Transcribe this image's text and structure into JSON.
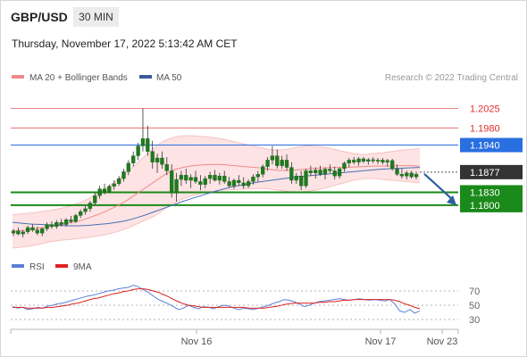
{
  "header": {
    "symbol": "GBP/USD",
    "timeframe": "30 MIN",
    "datetime": "Thursday, November 17, 2022 5:13:42 AM CET"
  },
  "legend": {
    "ma20_label": "MA 20 + Bollinger Bands",
    "ma50_label": "MA 50",
    "credit": "Research © 2022 Trading Central"
  },
  "rsi_legend": {
    "rsi_label": "RSI",
    "ma_label": "9MA"
  },
  "colors": {
    "up": "#1e7a1e",
    "down": "#1e7a1e",
    "ma20": "#f08a8a",
    "ma50": "#4a6fb5",
    "band_fill": "#fde3e3",
    "resistance": "#e03030",
    "pivot": "#2a6fe0",
    "support": "#1a8a1a",
    "current": "#333333",
    "arrow": "#2a5fa0",
    "rsi": "#5b7fd6",
    "rsi_ma": "#e02020"
  },
  "chart_data": [
    {
      "type": "candlestick",
      "title": "GBP/USD",
      "x_ticks": [
        "Nov 16",
        "Nov 17",
        "Nov 23"
      ],
      "y_range": [
        1.17,
        1.207
      ],
      "levels": [
        {
          "value": "1.2025",
          "kind": "resistance"
        },
        {
          "value": "1.1980",
          "kind": "resistance"
        },
        {
          "value": "1.1940",
          "kind": "pivot"
        },
        {
          "value": "1.1877",
          "kind": "current"
        },
        {
          "value": "1.1830",
          "kind": "support"
        },
        {
          "value": "1.1800",
          "kind": "support"
        }
      ],
      "ohlc": [
        [
          1.1735,
          1.1745,
          1.1728,
          1.174
        ],
        [
          1.174,
          1.1748,
          1.173,
          1.1733
        ],
        [
          1.1733,
          1.1742,
          1.1725,
          1.1738
        ],
        [
          1.1738,
          1.1752,
          1.1733,
          1.1748
        ],
        [
          1.1748,
          1.1755,
          1.1738,
          1.1742
        ],
        [
          1.1742,
          1.175,
          1.173,
          1.1735
        ],
        [
          1.1735,
          1.1748,
          1.1728,
          1.1745
        ],
        [
          1.1745,
          1.176,
          1.174,
          1.1755
        ],
        [
          1.1755,
          1.1762,
          1.1745,
          1.175
        ],
        [
          1.175,
          1.1765,
          1.1745,
          1.176
        ],
        [
          1.176,
          1.1768,
          1.175,
          1.1755
        ],
        [
          1.1755,
          1.177,
          1.175,
          1.1766
        ],
        [
          1.1766,
          1.1775,
          1.1758,
          1.1762
        ],
        [
          1.1762,
          1.178,
          1.1758,
          1.1776
        ],
        [
          1.1776,
          1.179,
          1.177,
          1.1785
        ],
        [
          1.1785,
          1.1798,
          1.1778,
          1.1792
        ],
        [
          1.1792,
          1.181,
          1.1785,
          1.1805
        ],
        [
          1.1805,
          1.183,
          1.18,
          1.1822
        ],
        [
          1.1822,
          1.1845,
          1.1815,
          1.1838
        ],
        [
          1.1838,
          1.185,
          1.1825,
          1.1832
        ],
        [
          1.1832,
          1.1848,
          1.1828,
          1.1844
        ],
        [
          1.1844,
          1.1858,
          1.1836,
          1.185
        ],
        [
          1.185,
          1.1868,
          1.1845,
          1.1862
        ],
        [
          1.1862,
          1.1885,
          1.1855,
          1.1878
        ],
        [
          1.1878,
          1.1905,
          1.187,
          1.1898
        ],
        [
          1.1898,
          1.1925,
          1.189,
          1.1915
        ],
        [
          1.1915,
          1.1945,
          1.1905,
          1.1938
        ],
        [
          1.1938,
          1.2025,
          1.1925,
          1.1955
        ],
        [
          1.1955,
          1.1985,
          1.1915,
          1.1925
        ],
        [
          1.1925,
          1.195,
          1.1885,
          1.19
        ],
        [
          1.19,
          1.192,
          1.1875,
          1.191
        ],
        [
          1.191,
          1.1925,
          1.1885,
          1.1895
        ],
        [
          1.1895,
          1.1912,
          1.187,
          1.188
        ],
        [
          1.188,
          1.1895,
          1.1818,
          1.1828
        ],
        [
          1.1828,
          1.1875,
          1.1808,
          1.186
        ],
        [
          1.186,
          1.188,
          1.1845,
          1.187
        ],
        [
          1.187,
          1.1885,
          1.185,
          1.1858
        ],
        [
          1.1858,
          1.1872,
          1.184,
          1.1865
        ],
        [
          1.1865,
          1.188,
          1.185,
          1.1855
        ],
        [
          1.1855,
          1.187,
          1.1835,
          1.1848
        ],
        [
          1.1848,
          1.1868,
          1.184,
          1.1862
        ],
        [
          1.1862,
          1.1878,
          1.185,
          1.187
        ],
        [
          1.187,
          1.1882,
          1.1855,
          1.1858
        ],
        [
          1.1858,
          1.1875,
          1.1848,
          1.1868
        ],
        [
          1.1868,
          1.188,
          1.185,
          1.1855
        ],
        [
          1.1855,
          1.1866,
          1.184,
          1.1845
        ],
        [
          1.1845,
          1.1862,
          1.1838,
          1.1858
        ],
        [
          1.1858,
          1.187,
          1.1845,
          1.1852
        ],
        [
          1.1852,
          1.1865,
          1.1838,
          1.1845
        ],
        [
          1.1845,
          1.186,
          1.184,
          1.1855
        ],
        [
          1.1855,
          1.1872,
          1.1848,
          1.1866
        ],
        [
          1.1866,
          1.188,
          1.1855,
          1.1872
        ],
        [
          1.1872,
          1.1895,
          1.1865,
          1.189
        ],
        [
          1.189,
          1.1912,
          1.188,
          1.1905
        ],
        [
          1.1905,
          1.1938,
          1.1895,
          1.1915
        ],
        [
          1.1915,
          1.193,
          1.1885,
          1.1892
        ],
        [
          1.1892,
          1.1915,
          1.1885,
          1.1905
        ],
        [
          1.1905,
          1.1918,
          1.188,
          1.1888
        ],
        [
          1.1888,
          1.19,
          1.185,
          1.1858
        ],
        [
          1.1858,
          1.1875,
          1.185,
          1.1868
        ],
        [
          1.1868,
          1.188,
          1.1835,
          1.1845
        ],
        [
          1.1845,
          1.1885,
          1.184,
          1.188
        ],
        [
          1.188,
          1.1892,
          1.1868,
          1.1875
        ],
        [
          1.1875,
          1.1888,
          1.1862,
          1.1882
        ],
        [
          1.1882,
          1.1892,
          1.1868,
          1.1872
        ],
        [
          1.1872,
          1.1888,
          1.186,
          1.1884
        ],
        [
          1.1884,
          1.1895,
          1.1875,
          1.188
        ],
        [
          1.188,
          1.189,
          1.186,
          1.1868
        ],
        [
          1.1868,
          1.1888,
          1.1862,
          1.1885
        ],
        [
          1.1885,
          1.1902,
          1.1878,
          1.1898
        ],
        [
          1.1898,
          1.191,
          1.1888,
          1.1905
        ],
        [
          1.1905,
          1.1912,
          1.1895,
          1.19
        ],
        [
          1.19,
          1.1912,
          1.1892,
          1.1908
        ],
        [
          1.1908,
          1.1912,
          1.1898,
          1.1902
        ],
        [
          1.1902,
          1.191,
          1.1894,
          1.1906
        ],
        [
          1.1906,
          1.1912,
          1.1898,
          1.1903
        ],
        [
          1.1903,
          1.191,
          1.1896,
          1.1905
        ],
        [
          1.1905,
          1.191,
          1.1895,
          1.19
        ],
        [
          1.19,
          1.1908,
          1.189,
          1.1904
        ],
        [
          1.1904,
          1.1908,
          1.188,
          1.1885
        ],
        [
          1.1885,
          1.1895,
          1.1868,
          1.1872
        ],
        [
          1.1872,
          1.1885,
          1.1862,
          1.1868
        ],
        [
          1.1868,
          1.188,
          1.186,
          1.1875
        ],
        [
          1.1875,
          1.188,
          1.1862,
          1.1866
        ],
        [
          1.1866,
          1.1878,
          1.186,
          1.1872
        ]
      ],
      "bb_upper": [
        1.1778,
        1.178,
        1.1782,
        1.1785,
        1.1788,
        1.1792,
        1.1798,
        1.1805,
        1.1815,
        1.1828,
        1.1842,
        1.1858,
        1.1875,
        1.1895,
        1.1915,
        1.1935,
        1.195,
        1.1958,
        1.1962,
        1.1962,
        1.196,
        1.1958,
        1.1955,
        1.195,
        1.1945,
        1.194,
        1.1935,
        1.193,
        1.1928,
        1.193,
        1.1935,
        1.1938,
        1.1937,
        1.1935,
        1.193,
        1.1925,
        1.192,
        1.1918,
        1.192,
        1.1922,
        1.1925,
        1.1928,
        1.193,
        1.1932
      ],
      "bb_lower": [
        1.17,
        1.1702,
        1.1705,
        1.171,
        1.1715,
        1.1718,
        1.172,
        1.1722,
        1.1725,
        1.1728,
        1.1732,
        1.1738,
        1.1745,
        1.1755,
        1.1765,
        1.1775,
        1.179,
        1.1805,
        1.1815,
        1.1822,
        1.1828,
        1.1832,
        1.1835,
        1.1836,
        1.1837,
        1.1838,
        1.1839,
        1.1838,
        1.1835,
        1.1832,
        1.183,
        1.1832,
        1.1835,
        1.184,
        1.1846,
        1.1852,
        1.1858,
        1.1862,
        1.1862,
        1.186,
        1.1858,
        1.1856,
        1.1854,
        1.1852
      ],
      "ma20": [
        1.174,
        1.1741,
        1.1743,
        1.1747,
        1.1751,
        1.1755,
        1.1759,
        1.1763,
        1.177,
        1.1778,
        1.1787,
        1.1798,
        1.181,
        1.1825,
        1.184,
        1.1855,
        1.187,
        1.1882,
        1.1888,
        1.1892,
        1.1894,
        1.1895,
        1.1895,
        1.1893,
        1.1891,
        1.1889,
        1.1887,
        1.1884,
        1.1881,
        1.1881,
        1.1882,
        1.1884,
        1.1886,
        1.1887,
        1.1888,
        1.1888,
        1.1889,
        1.189,
        1.1891,
        1.1891,
        1.1891,
        1.1892,
        1.1892,
        1.1891
      ],
      "ma50": [
        1.176,
        1.1758,
        1.1756,
        1.1755,
        1.1754,
        1.1753,
        1.1752,
        1.1752,
        1.1753,
        1.1755,
        1.1757,
        1.176,
        1.1764,
        1.177,
        1.1777,
        1.1785,
        1.1793,
        1.1801,
        1.1809,
        1.1816,
        1.1823,
        1.183,
        1.1836,
        1.1842,
        1.1846,
        1.185,
        1.1854,
        1.1857,
        1.186,
        1.1863,
        1.1866,
        1.1868,
        1.187,
        1.1872,
        1.1874,
        1.1876,
        1.1878,
        1.188,
        1.1882,
        1.1884,
        1.1885,
        1.1886,
        1.1887,
        1.1888
      ],
      "forecast": {
        "from": 1.1877,
        "to": 1.18
      }
    },
    {
      "type": "line",
      "title": "RSI",
      "y_ticks": [
        "70",
        "50",
        "30"
      ],
      "y_range": [
        20,
        85
      ],
      "series": [
        {
          "name": "RSI",
          "values": [
            48,
            46,
            47,
            44,
            45,
            47,
            46,
            49,
            50,
            52,
            53,
            55,
            57,
            59,
            61,
            63,
            64,
            66,
            68,
            70,
            71,
            73,
            74,
            75,
            78,
            76,
            72,
            68,
            63,
            58,
            55,
            52,
            48,
            44,
            46,
            50,
            47,
            45,
            48,
            47,
            45,
            48,
            50,
            49,
            46,
            44,
            46,
            45,
            44,
            46,
            48,
            50,
            53,
            55,
            58,
            57,
            55,
            52,
            48,
            50,
            53,
            55,
            56,
            57,
            58,
            59,
            58,
            57,
            58,
            59,
            58,
            57,
            58,
            57,
            56,
            58,
            52,
            42,
            40,
            44,
            39,
            42
          ]
        },
        {
          "name": "9MA",
          "values": [
            47,
            47,
            47,
            46,
            46,
            46,
            46,
            47,
            47,
            48,
            49,
            50,
            52,
            53,
            55,
            57,
            59,
            60,
            62,
            64,
            66,
            67,
            69,
            70,
            72,
            73,
            73,
            72,
            70,
            68,
            65,
            62,
            58,
            55,
            52,
            50,
            49,
            48,
            47,
            47,
            47,
            47,
            47,
            47,
            47,
            47,
            47,
            46,
            46,
            46,
            46,
            47,
            48,
            49,
            51,
            52,
            53,
            53,
            53,
            53,
            53,
            54,
            54,
            55,
            55,
            56,
            57,
            57,
            58,
            58,
            58,
            58,
            58,
            58,
            58,
            58,
            57,
            55,
            52,
            50,
            47,
            45
          ]
        }
      ]
    }
  ]
}
